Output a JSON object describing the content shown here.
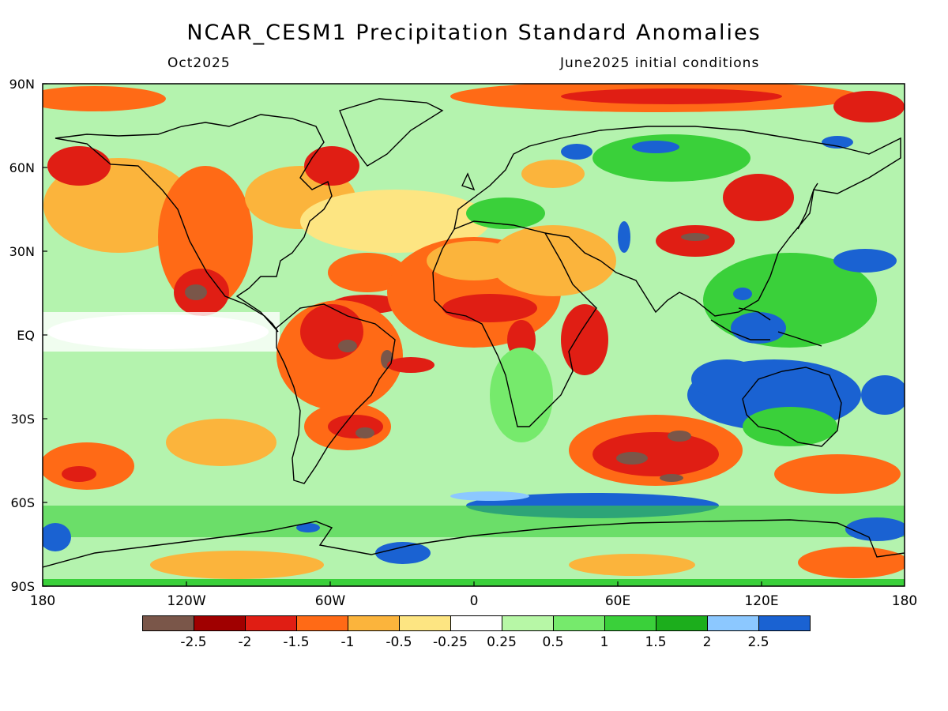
{
  "header": {
    "title": "NCAR_CESM1 Precipitation Standard Anomalies",
    "valid_month": "Oct2025",
    "init_conditions": "June2025 initial conditions"
  },
  "axes": {
    "lat_labels": [
      "90N",
      "60N",
      "30N",
      "EQ",
      "30S",
      "60S",
      "90S"
    ],
    "lon_labels": [
      "180",
      "120W",
      "60W",
      "0",
      "60E",
      "120E",
      "180"
    ]
  },
  "colorbar": {
    "labels": [
      "-2.5",
      "-2",
      "-1.5",
      "-1",
      "-0.5",
      "-0.25",
      "0.25",
      "0.5",
      "1",
      "1.5",
      "2",
      "2.5"
    ],
    "colors": [
      "#7a5649",
      "#a00000",
      "#e01e14",
      "#ff6a16",
      "#fbb43c",
      "#fde582",
      "#ffffff",
      "#b7f7a6",
      "#76ea6c",
      "#3ad03a",
      "#1cae1c",
      "#8cc8ff",
      "#1a62d2"
    ]
  },
  "legend_colors": {
    "ocean_land_outline": "#000000",
    "frame": "#000000"
  }
}
